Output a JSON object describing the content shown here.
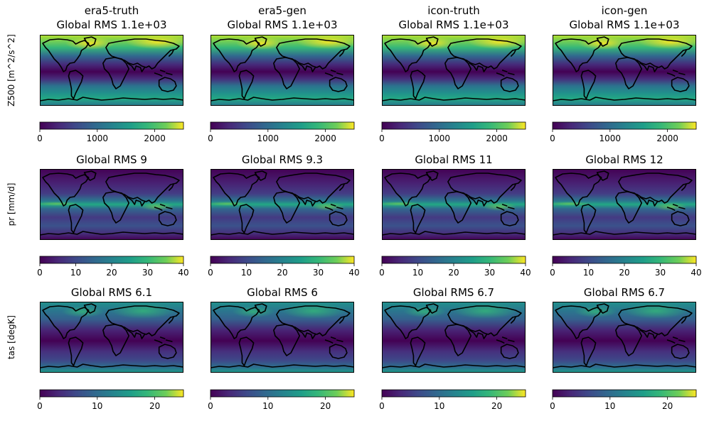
{
  "chart_data": {
    "type": "heatmap",
    "colormap": "viridis",
    "columns": [
      "era5-truth",
      "era5-gen",
      "icon-truth",
      "icon-gen"
    ],
    "rows": [
      {
        "key": "z500",
        "ylabel": "Z500 [m^2/s^2]",
        "rms_values": [
          "1.1e+03",
          "1.1e+03",
          "1.1e+03",
          "1.1e+03"
        ],
        "titles": [
          "Global RMS 1.1e+03",
          "Global RMS 1.1e+03",
          "Global RMS 1.1e+03",
          "Global RMS 1.1e+03"
        ],
        "colorbar": {
          "range": [
            0,
            2500
          ],
          "ticks": [
            0,
            1000,
            2000
          ]
        }
      },
      {
        "key": "pr",
        "ylabel": "pr [mm/d]",
        "rms_values": [
          "9",
          "9.3",
          "11",
          "12"
        ],
        "titles": [
          "Global RMS 9",
          "Global RMS 9.3",
          "Global RMS 11",
          "Global RMS 12"
        ],
        "colorbar": {
          "range": [
            0,
            40
          ],
          "ticks": [
            0,
            10,
            20,
            30,
            40
          ]
        }
      },
      {
        "key": "tas",
        "ylabel": "tas [degK]",
        "rms_values": [
          "6.1",
          "6",
          "6.7",
          "6.7"
        ],
        "titles": [
          "Global RMS 6.1",
          "Global RMS 6",
          "Global RMS 6.7",
          "Global RMS 6.7"
        ],
        "colorbar": {
          "range": [
            0,
            25
          ],
          "ticks": [
            0,
            10,
            20
          ]
        }
      }
    ]
  }
}
